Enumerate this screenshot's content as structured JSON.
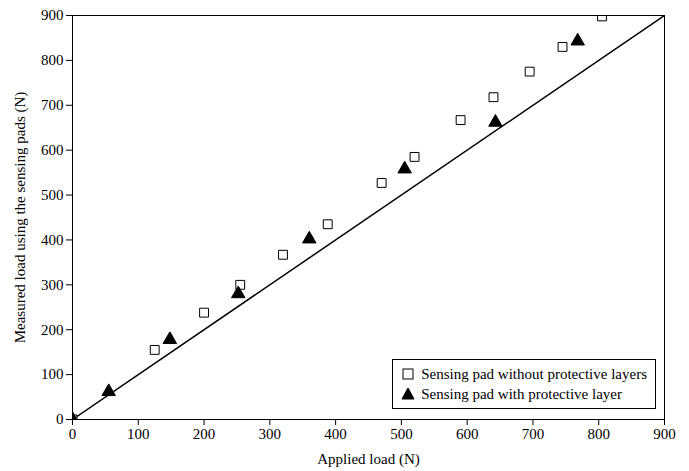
{
  "chart_data": {
    "type": "scatter",
    "x_label": "Applied load (N)",
    "y_label": "Measured load using the sensing pads (N)",
    "xlim": [
      0,
      900
    ],
    "ylim": [
      0,
      900
    ],
    "xticks": [
      0,
      100,
      200,
      300,
      400,
      500,
      600,
      700,
      800,
      900
    ],
    "yticks": [
      0,
      100,
      200,
      300,
      400,
      500,
      600,
      700,
      800,
      900
    ],
    "grid": false,
    "legend": "bottom-right",
    "series": [
      {
        "name": "Sensing pad without protective layers",
        "type": "scatter",
        "marker": "open_square",
        "color": "#000000",
        "x": [
          0,
          125,
          200,
          255,
          320,
          388,
          470,
          520,
          590,
          640,
          695,
          745,
          805
        ],
        "values": [
          0,
          155,
          238,
          300,
          367,
          435,
          527,
          585,
          667,
          718,
          775,
          830,
          898
        ]
      },
      {
        "name": "Sensing pad with protective layer",
        "type": "scatter",
        "marker": "triangle",
        "color": "#000000",
        "x": [
          0,
          55,
          148,
          252,
          360,
          505,
          643,
          768
        ],
        "values": [
          0,
          62,
          178,
          280,
          402,
          558,
          662,
          843
        ]
      },
      {
        "type": "line",
        "line_style": "solid",
        "color": "#000000",
        "x": [
          0,
          900
        ],
        "values": [
          0,
          900
        ]
      }
    ]
  }
}
